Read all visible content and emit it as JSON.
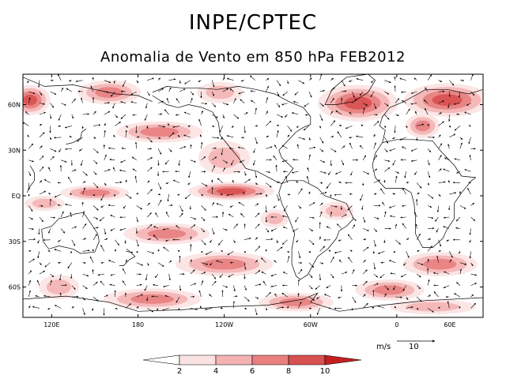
{
  "header": {
    "title": "INPE/CPTEC",
    "subtitle": "Anomalia de Vento em 850 hPa FEB2012"
  },
  "chart_data": {
    "type": "heatmap",
    "title": "Anomalia de Vento em 850 hPa FEB2012",
    "variable": "wind speed anomaly (m/s) with anomaly wind vectors",
    "x_axis": {
      "range": [
        100,
        420
      ],
      "ticks": [
        {
          "value": 120,
          "label": "120E"
        },
        {
          "value": 180,
          "label": "180"
        },
        {
          "value": 240,
          "label": "120W"
        },
        {
          "value": 300,
          "label": "60W"
        },
        {
          "value": 360,
          "label": "0"
        },
        {
          "value": 420,
          "label": "60E"
        }
      ]
    },
    "y_axis": {
      "range": [
        -80,
        80
      ],
      "ticks": [
        {
          "value": 60,
          "label": "60N"
        },
        {
          "value": 30,
          "label": "30N"
        },
        {
          "value": 0,
          "label": "EQ"
        },
        {
          "value": -30,
          "label": "30S"
        },
        {
          "value": -60,
          "label": "60S"
        }
      ]
    },
    "colorbar": {
      "levels": [
        2,
        4,
        6,
        8,
        10
      ],
      "colors": [
        "#ffffff",
        "#fbe2e2",
        "#f4b2b2",
        "#e88080",
        "#d85050",
        "#c42020"
      ]
    },
    "anomaly_regions": [
      {
        "lon": 105,
        "lat": 63,
        "rlon": 14,
        "rlat": 10,
        "level": 4
      },
      {
        "lon": 160,
        "lat": 68,
        "rlon": 22,
        "rlat": 8,
        "level": 3
      },
      {
        "lon": 195,
        "lat": 42,
        "rlon": 30,
        "rlat": 7,
        "level": 3
      },
      {
        "lon": 240,
        "lat": 25,
        "rlon": 18,
        "rlat": 11,
        "level": 2
      },
      {
        "lon": 237,
        "lat": 68,
        "rlon": 16,
        "rlat": 7,
        "level": 2
      },
      {
        "lon": 333,
        "lat": 61,
        "rlon": 28,
        "rlat": 12,
        "level": 4
      },
      {
        "lon": 395,
        "lat": 63,
        "rlon": 30,
        "rlat": 11,
        "level": 4
      },
      {
        "lon": 378,
        "lat": 46,
        "rlon": 12,
        "rlat": 8,
        "level": 3
      },
      {
        "lon": 245,
        "lat": 3,
        "rlon": 30,
        "rlat": 6,
        "level": 4
      },
      {
        "lon": 150,
        "lat": 2,
        "rlon": 24,
        "rlat": 5,
        "level": 3
      },
      {
        "lon": 115,
        "lat": -5,
        "rlon": 14,
        "rlat": 5,
        "level": 2
      },
      {
        "lon": 200,
        "lat": -25,
        "rlon": 30,
        "rlat": 7,
        "level": 3
      },
      {
        "lon": 275,
        "lat": -15,
        "rlon": 10,
        "rlat": 6,
        "level": 2
      },
      {
        "lon": 318,
        "lat": -10,
        "rlon": 12,
        "rlat": 6,
        "level": 2
      },
      {
        "lon": 240,
        "lat": -45,
        "rlon": 34,
        "rlat": 8,
        "level": 3
      },
      {
        "lon": 390,
        "lat": -45,
        "rlon": 26,
        "rlat": 8,
        "level": 3
      },
      {
        "lon": 355,
        "lat": -62,
        "rlon": 24,
        "rlat": 7,
        "level": 3
      },
      {
        "lon": 125,
        "lat": -60,
        "rlon": 14,
        "rlat": 8,
        "level": 2
      },
      {
        "lon": 190,
        "lat": -68,
        "rlon": 34,
        "rlat": 7,
        "level": 3
      },
      {
        "lon": 290,
        "lat": -70,
        "rlon": 26,
        "rlat": 6,
        "level": 3
      },
      {
        "lon": 385,
        "lat": -73,
        "rlon": 30,
        "rlat": 5,
        "level": 2
      }
    ],
    "reference_vector": {
      "unit": "m/s",
      "magnitude": "10"
    }
  }
}
